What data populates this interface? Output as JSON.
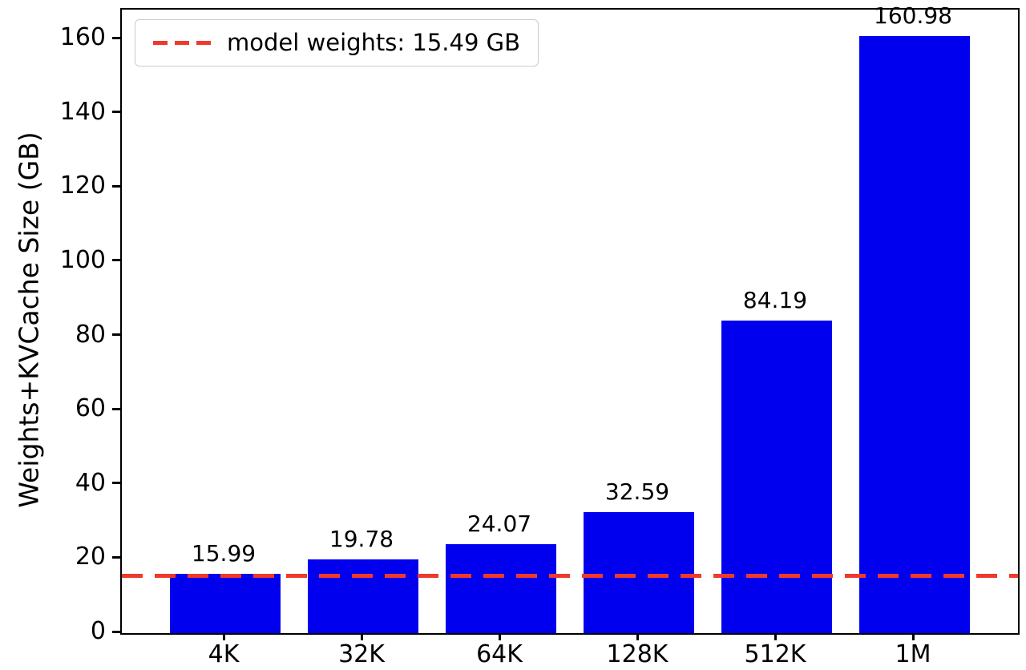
{
  "chart_data": {
    "type": "bar",
    "title": "",
    "categories": [
      "4K",
      "32K",
      "64K",
      "128K",
      "512K",
      "1M"
    ],
    "values": [
      15.99,
      19.78,
      24.07,
      32.59,
      84.19,
      160.98
    ],
    "value_labels": [
      "15.99",
      "19.78",
      "24.07",
      "32.59",
      "84.19",
      "160.98"
    ],
    "xlabel": "",
    "ylabel": "Weights+KVCache Size (GB)",
    "ylim": [
      0,
      168
    ],
    "yticks": [
      0,
      20,
      40,
      60,
      80,
      100,
      120,
      140,
      160
    ],
    "grid": false,
    "bar_color": "#0000ee",
    "legend_position": "upper-left",
    "reference_line": {
      "value": 15.49,
      "style": "dashed",
      "color": "#ee3a2c",
      "label": "model weights: 15.49 GB"
    }
  }
}
